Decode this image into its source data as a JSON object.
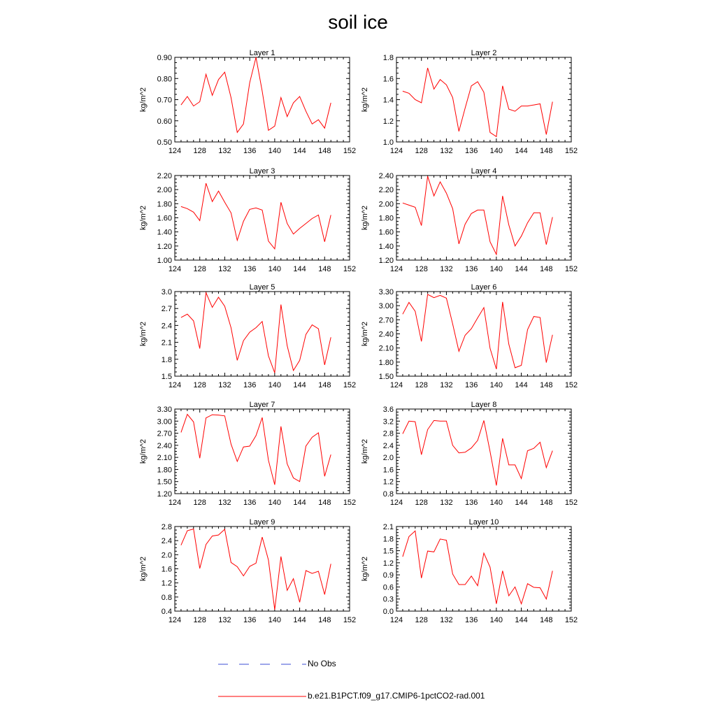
{
  "title": "soil ice",
  "legend": [
    {
      "label": "No Obs",
      "color": "#3b4ed6",
      "dash": true
    },
    {
      "label": "b.e21.B1PCT.f09_g17.CMIP6-1pctCO2-rad.001",
      "color": "#ff0000",
      "dash": false
    }
  ],
  "chart_data": [
    {
      "type": "line",
      "title": "Layer 1",
      "ylabel": "kg/m^2",
      "xlim": [
        124,
        152
      ],
      "ylim": [
        0.5,
        0.9
      ],
      "xticks": [
        "124",
        "128",
        "132",
        "136",
        "140",
        "144",
        "148",
        "152"
      ],
      "yticks": [
        "0.50",
        "0.60",
        "0.70",
        "0.80",
        "0.90"
      ],
      "x": [
        125,
        126,
        127,
        128,
        129,
        130,
        131,
        132,
        133,
        134,
        135,
        136,
        137,
        138,
        139,
        140,
        141,
        142,
        143,
        144,
        145,
        146,
        147,
        148,
        149
      ],
      "series": [
        {
          "color": "#ff0000",
          "values": [
            0.675,
            0.715,
            0.67,
            0.69,
            0.82,
            0.72,
            0.795,
            0.83,
            0.71,
            0.545,
            0.585,
            0.78,
            0.9,
            0.74,
            0.555,
            0.575,
            0.71,
            0.62,
            0.685,
            0.715,
            0.645,
            0.585,
            0.605,
            0.565,
            0.685
          ]
        }
      ]
    },
    {
      "type": "line",
      "title": "Layer 2",
      "ylabel": "kg/m^2",
      "xlim": [
        124,
        152
      ],
      "ylim": [
        1.0,
        1.8
      ],
      "xticks": [
        "124",
        "128",
        "132",
        "136",
        "140",
        "144",
        "148",
        "152"
      ],
      "yticks": [
        "1.0",
        "1.2",
        "1.4",
        "1.6",
        "1.8"
      ],
      "x": [
        125,
        126,
        127,
        128,
        129,
        130,
        131,
        132,
        133,
        134,
        135,
        136,
        137,
        138,
        139,
        140,
        141,
        142,
        143,
        144,
        145,
        146,
        147,
        148,
        149
      ],
      "series": [
        {
          "color": "#ff0000",
          "values": [
            1.48,
            1.46,
            1.4,
            1.37,
            1.7,
            1.5,
            1.59,
            1.54,
            1.42,
            1.1,
            1.32,
            1.53,
            1.57,
            1.47,
            1.09,
            1.05,
            1.53,
            1.31,
            1.29,
            1.34,
            1.34,
            1.35,
            1.36,
            1.07,
            1.38
          ]
        }
      ]
    },
    {
      "type": "line",
      "title": "Layer 3",
      "ylabel": "kg/m^2",
      "xlim": [
        124,
        152
      ],
      "ylim": [
        1.0,
        2.2
      ],
      "xticks": [
        "124",
        "128",
        "132",
        "136",
        "140",
        "144",
        "148",
        "152"
      ],
      "yticks": [
        "1.00",
        "1.20",
        "1.40",
        "1.60",
        "1.80",
        "2.00",
        "2.20"
      ],
      "x": [
        125,
        126,
        127,
        128,
        129,
        130,
        131,
        132,
        133,
        134,
        135,
        136,
        137,
        138,
        139,
        140,
        141,
        142,
        143,
        144,
        145,
        146,
        147,
        148,
        149
      ],
      "series": [
        {
          "color": "#ff0000",
          "values": [
            1.76,
            1.73,
            1.68,
            1.56,
            2.09,
            1.83,
            1.98,
            1.82,
            1.67,
            1.28,
            1.55,
            1.72,
            1.74,
            1.71,
            1.27,
            1.16,
            1.82,
            1.52,
            1.37,
            1.45,
            1.52,
            1.59,
            1.64,
            1.26,
            1.64
          ]
        }
      ]
    },
    {
      "type": "line",
      "title": "Layer 4",
      "ylabel": "kg/m^2",
      "xlim": [
        124,
        152
      ],
      "ylim": [
        1.2,
        2.4
      ],
      "xticks": [
        "124",
        "128",
        "132",
        "136",
        "140",
        "144",
        "148",
        "152"
      ],
      "yticks": [
        "1.20",
        "1.40",
        "1.60",
        "1.80",
        "2.00",
        "2.20",
        "2.40"
      ],
      "x": [
        125,
        126,
        127,
        128,
        129,
        130,
        131,
        132,
        133,
        134,
        135,
        136,
        137,
        138,
        139,
        140,
        141,
        142,
        143,
        144,
        145,
        146,
        147,
        148,
        149
      ],
      "series": [
        {
          "color": "#ff0000",
          "values": [
            2.01,
            1.98,
            1.95,
            1.69,
            2.39,
            2.11,
            2.31,
            2.15,
            1.93,
            1.43,
            1.71,
            1.86,
            1.91,
            1.91,
            1.46,
            1.28,
            2.11,
            1.7,
            1.4,
            1.54,
            1.73,
            1.87,
            1.87,
            1.42,
            1.81
          ]
        }
      ]
    },
    {
      "type": "line",
      "title": "Layer 5",
      "ylabel": "kg/m^2",
      "xlim": [
        124,
        152
      ],
      "ylim": [
        1.5,
        3.0
      ],
      "xticks": [
        "124",
        "128",
        "132",
        "136",
        "140",
        "144",
        "148",
        "152"
      ],
      "yticks": [
        "1.5",
        "1.8",
        "2.1",
        "2.4",
        "2.7",
        "3.0"
      ],
      "x": [
        125,
        126,
        127,
        128,
        129,
        130,
        131,
        132,
        133,
        134,
        135,
        136,
        137,
        138,
        139,
        140,
        141,
        142,
        143,
        144,
        145,
        146,
        147,
        148,
        149
      ],
      "series": [
        {
          "color": "#ff0000",
          "values": [
            2.54,
            2.6,
            2.48,
            1.99,
            2.98,
            2.72,
            2.9,
            2.74,
            2.36,
            1.78,
            2.13,
            2.28,
            2.36,
            2.47,
            1.86,
            1.56,
            2.77,
            2.04,
            1.6,
            1.78,
            2.24,
            2.41,
            2.34,
            1.7,
            2.19
          ]
        }
      ]
    },
    {
      "type": "line",
      "title": "Layer 6",
      "ylabel": "kg/m^2",
      "xlim": [
        124,
        152
      ],
      "ylim": [
        1.5,
        3.3
      ],
      "xticks": [
        "124",
        "128",
        "132",
        "136",
        "140",
        "144",
        "148",
        "152"
      ],
      "yticks": [
        "1.50",
        "1.80",
        "2.10",
        "2.40",
        "2.70",
        "3.00",
        "3.30"
      ],
      "x": [
        125,
        126,
        127,
        128,
        129,
        130,
        131,
        132,
        133,
        134,
        135,
        136,
        137,
        138,
        139,
        140,
        141,
        142,
        143,
        144,
        145,
        146,
        147,
        148,
        149
      ],
      "series": [
        {
          "color": "#ff0000",
          "values": [
            2.82,
            3.07,
            2.88,
            2.24,
            3.24,
            3.17,
            3.22,
            3.16,
            2.61,
            2.03,
            2.37,
            2.51,
            2.74,
            2.96,
            2.09,
            1.65,
            3.08,
            2.18,
            1.68,
            1.73,
            2.49,
            2.77,
            2.75,
            1.79,
            2.38
          ]
        }
      ]
    },
    {
      "type": "line",
      "title": "Layer 7",
      "ylabel": "kg/m^2",
      "xlim": [
        124,
        152
      ],
      "ylim": [
        1.2,
        3.3
      ],
      "xticks": [
        "124",
        "128",
        "132",
        "136",
        "140",
        "144",
        "148",
        "152"
      ],
      "yticks": [
        "1.20",
        "1.50",
        "1.80",
        "2.10",
        "2.40",
        "2.70",
        "3.00",
        "3.30"
      ],
      "x": [
        125,
        126,
        127,
        128,
        129,
        130,
        131,
        132,
        133,
        134,
        135,
        136,
        137,
        138,
        139,
        140,
        141,
        142,
        143,
        144,
        145,
        146,
        147,
        148,
        149
      ],
      "series": [
        {
          "color": "#ff0000",
          "values": [
            2.72,
            3.17,
            2.98,
            2.08,
            3.08,
            3.16,
            3.15,
            3.13,
            2.43,
            2.0,
            2.36,
            2.38,
            2.64,
            3.09,
            2.03,
            1.42,
            2.87,
            1.94,
            1.59,
            1.5,
            2.38,
            2.6,
            2.71,
            1.63,
            2.17
          ]
        }
      ]
    },
    {
      "type": "line",
      "title": "Layer 8",
      "ylabel": "kg/m^2",
      "xlim": [
        124,
        152
      ],
      "ylim": [
        0.8,
        3.6
      ],
      "xticks": [
        "124",
        "128",
        "132",
        "136",
        "140",
        "144",
        "148",
        "152"
      ],
      "yticks": [
        "0.8",
        "1.2",
        "1.6",
        "2.0",
        "2.4",
        "2.8",
        "3.2",
        "3.6"
      ],
      "x": [
        125,
        126,
        127,
        128,
        129,
        130,
        131,
        132,
        133,
        134,
        135,
        136,
        137,
        138,
        139,
        140,
        141,
        142,
        143,
        144,
        145,
        146,
        147,
        148,
        149
      ],
      "series": [
        {
          "color": "#ff0000",
          "values": [
            2.78,
            3.2,
            3.18,
            2.09,
            2.92,
            3.22,
            3.2,
            3.2,
            2.4,
            2.15,
            2.17,
            2.31,
            2.56,
            3.22,
            2.19,
            1.07,
            2.63,
            1.75,
            1.75,
            1.3,
            2.22,
            2.3,
            2.5,
            1.66,
            2.22
          ]
        }
      ]
    },
    {
      "type": "line",
      "title": "Layer 9",
      "ylabel": "kg/m^2",
      "xlim": [
        124,
        152
      ],
      "ylim": [
        0.4,
        2.8
      ],
      "xticks": [
        "124",
        "128",
        "132",
        "136",
        "140",
        "144",
        "148",
        "152"
      ],
      "yticks": [
        "0.4",
        "0.8",
        "1.2",
        "1.6",
        "2.0",
        "2.4",
        "2.8"
      ],
      "x": [
        125,
        126,
        127,
        128,
        129,
        130,
        131,
        132,
        133,
        134,
        135,
        136,
        137,
        138,
        139,
        140,
        141,
        142,
        143,
        144,
        145,
        146,
        147,
        148,
        149
      ],
      "series": [
        {
          "color": "#ff0000",
          "values": [
            2.27,
            2.68,
            2.73,
            1.61,
            2.29,
            2.53,
            2.56,
            2.72,
            1.78,
            1.66,
            1.4,
            1.67,
            1.76,
            2.5,
            1.85,
            0.44,
            1.95,
            0.99,
            1.32,
            0.65,
            1.55,
            1.47,
            1.53,
            0.87,
            1.74
          ]
        }
      ]
    },
    {
      "type": "line",
      "title": "Layer 10",
      "ylabel": "kg/m^2",
      "xlim": [
        124,
        152
      ],
      "ylim": [
        0.0,
        2.1
      ],
      "xticks": [
        "124",
        "128",
        "132",
        "136",
        "140",
        "144",
        "148",
        "152"
      ],
      "yticks": [
        "0.0",
        "0.3",
        "0.6",
        "0.9",
        "1.2",
        "1.5",
        "1.8",
        "2.1"
      ],
      "x": [
        125,
        126,
        127,
        128,
        129,
        130,
        131,
        132,
        133,
        134,
        135,
        136,
        137,
        138,
        139,
        140,
        141,
        142,
        143,
        144,
        145,
        146,
        147,
        148,
        149
      ],
      "series": [
        {
          "color": "#ff0000",
          "values": [
            1.35,
            1.85,
            1.99,
            0.82,
            1.49,
            1.47,
            1.79,
            1.76,
            0.92,
            0.66,
            0.66,
            0.87,
            0.63,
            1.44,
            1.09,
            0.18,
            1.0,
            0.38,
            0.6,
            0.18,
            0.68,
            0.59,
            0.58,
            0.3,
            1.0
          ]
        }
      ]
    }
  ]
}
